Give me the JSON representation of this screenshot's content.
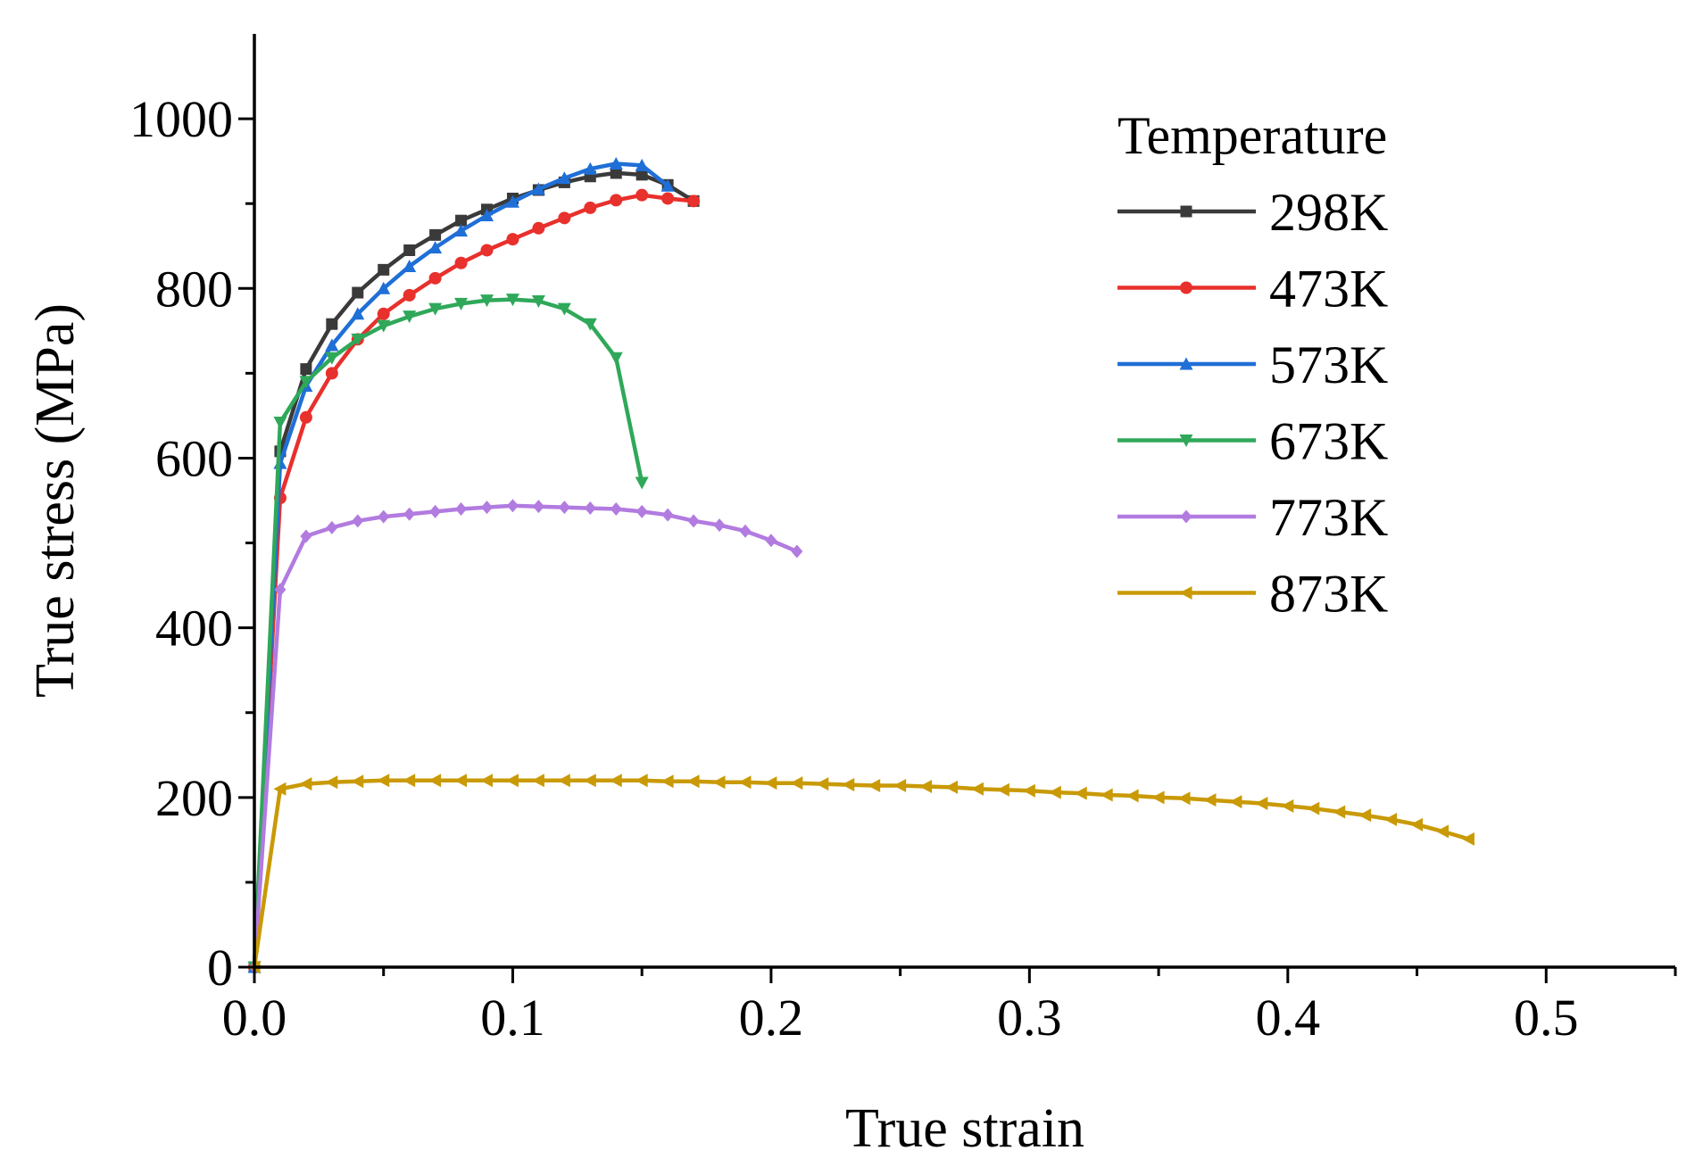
{
  "chart_data": {
    "type": "line",
    "xlabel": "True strain",
    "ylabel": "True stress (MPa)",
    "xlim": [
      0,
      0.55
    ],
    "ylim": [
      0,
      1100
    ],
    "x_major_ticks": [
      0.0,
      0.1,
      0.2,
      0.3,
      0.4,
      0.5
    ],
    "x_tick_labels": [
      "0.0",
      "0.1",
      "0.2",
      "0.3",
      "0.4",
      "0.5"
    ],
    "y_major_ticks": [
      0,
      200,
      400,
      600,
      800,
      1000
    ],
    "y_tick_labels": [
      "0",
      "200",
      "400",
      "600",
      "800",
      "1000"
    ],
    "legend": {
      "title": "Temperature",
      "position": "top-right"
    },
    "series": [
      {
        "name": "298K",
        "color": "#3a3a3a",
        "marker": "square",
        "x": [
          0,
          0.01,
          0.02,
          0.03,
          0.04,
          0.05,
          0.06,
          0.07,
          0.08,
          0.09,
          0.1,
          0.11,
          0.12,
          0.13,
          0.14,
          0.15,
          0.16,
          0.17
        ],
        "y": [
          0,
          608,
          705,
          758,
          795,
          822,
          845,
          863,
          880,
          893,
          906,
          916,
          925,
          932,
          936,
          934,
          922,
          903
        ]
      },
      {
        "name": "473K",
        "color": "#e8302c",
        "marker": "circle",
        "x": [
          0,
          0.01,
          0.02,
          0.03,
          0.04,
          0.05,
          0.06,
          0.07,
          0.08,
          0.09,
          0.1,
          0.11,
          0.12,
          0.13,
          0.14,
          0.15,
          0.16,
          0.17
        ],
        "y": [
          0,
          553,
          648,
          700,
          740,
          770,
          792,
          812,
          830,
          845,
          858,
          871,
          883,
          895,
          904,
          910,
          906,
          903
        ]
      },
      {
        "name": "573K",
        "color": "#1f6fd6",
        "marker": "triangle-up",
        "x": [
          0,
          0.01,
          0.02,
          0.03,
          0.04,
          0.05,
          0.06,
          0.07,
          0.08,
          0.09,
          0.1,
          0.11,
          0.12,
          0.13,
          0.14,
          0.15,
          0.16
        ],
        "y": [
          0,
          594,
          685,
          733,
          770,
          800,
          826,
          848,
          868,
          886,
          902,
          917,
          930,
          941,
          947,
          945,
          921
        ]
      },
      {
        "name": "673K",
        "color": "#2fa85a",
        "marker": "triangle-down",
        "x": [
          0,
          0.01,
          0.02,
          0.03,
          0.04,
          0.05,
          0.06,
          0.07,
          0.08,
          0.09,
          0.1,
          0.11,
          0.12,
          0.13,
          0.14,
          0.15
        ],
        "y": [
          0,
          642,
          690,
          718,
          740,
          756,
          767,
          776,
          782,
          786,
          787,
          785,
          776,
          758,
          718,
          571
        ]
      },
      {
        "name": "773K",
        "color": "#b27be0",
        "marker": "diamond",
        "x": [
          0,
          0.01,
          0.02,
          0.03,
          0.04,
          0.05,
          0.06,
          0.07,
          0.08,
          0.09,
          0.1,
          0.11,
          0.12,
          0.13,
          0.14,
          0.15,
          0.16,
          0.17,
          0.18,
          0.19,
          0.2,
          0.21
        ],
        "y": [
          0,
          445,
          508,
          518,
          526,
          531,
          534,
          537,
          540,
          542,
          544,
          543,
          542,
          541,
          540,
          537,
          533,
          526,
          521,
          514,
          503,
          490
        ]
      },
      {
        "name": "873K",
        "color": "#c99a06",
        "marker": "triangle-left",
        "x": [
          0,
          0.01,
          0.02,
          0.03,
          0.04,
          0.05,
          0.06,
          0.07,
          0.08,
          0.09,
          0.1,
          0.11,
          0.12,
          0.13,
          0.14,
          0.15,
          0.16,
          0.17,
          0.18,
          0.19,
          0.2,
          0.21,
          0.22,
          0.23,
          0.24,
          0.25,
          0.26,
          0.27,
          0.28,
          0.29,
          0.3,
          0.31,
          0.32,
          0.33,
          0.34,
          0.35,
          0.36,
          0.37,
          0.38,
          0.39,
          0.4,
          0.41,
          0.42,
          0.43,
          0.44,
          0.45,
          0.46,
          0.47
        ],
        "y": [
          0,
          210,
          216,
          218,
          219,
          220,
          220,
          220,
          220,
          220,
          220,
          220,
          220,
          220,
          220,
          220,
          219,
          219,
          218,
          218,
          217,
          217,
          216,
          215,
          214,
          214,
          213,
          212,
          210,
          209,
          208,
          206,
          205,
          203,
          202,
          200,
          199,
          197,
          195,
          193,
          190,
          187,
          183,
          179,
          174,
          168,
          160,
          151
        ]
      }
    ]
  }
}
